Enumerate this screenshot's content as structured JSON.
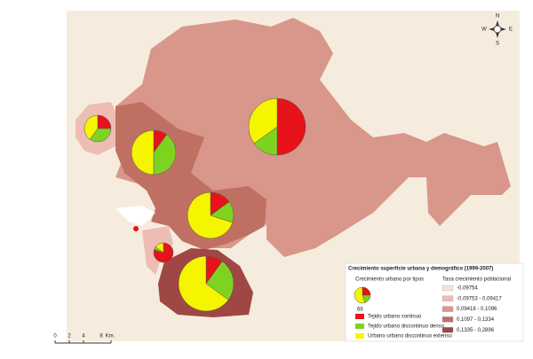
{
  "map": {
    "compass": {
      "n": "N",
      "s": "S",
      "e": "E",
      "w": "W"
    },
    "scale": {
      "ticks": [
        "0",
        "2",
        "4",
        "8"
      ],
      "unit": "Km."
    },
    "pies": [
      {
        "values": [
          25,
          35,
          40
        ]
      },
      {
        "values": [
          10,
          40,
          50
        ]
      },
      {
        "values": [
          50,
          15,
          35
        ]
      },
      {
        "values": [
          15,
          15,
          70
        ]
      },
      {
        "values": [
          80,
          5,
          15
        ]
      },
      {
        "values": [
          10,
          25,
          65
        ]
      }
    ],
    "legend": {
      "title": "Crecimiento superficie urbana y demográfico (1999-2007)",
      "pie_title": "Crecimiento urbano por tipos",
      "sample_pie": {
        "values": [
          25,
          20,
          55
        ],
        "label": "66"
      },
      "types": [
        {
          "label": "Tejido urbano continuo",
          "color": "#e8121a"
        },
        {
          "label": "Tejido urbano discontinuo denso",
          "color": "#7ed321"
        },
        {
          "label": "Urbano urbano discontinuo extenso",
          "color": "#f5f500"
        }
      ],
      "classes_title": "Tasa crecimiento poblacional",
      "classes": [
        {
          "label": "-0,09754",
          "color": "#f7e1db"
        },
        {
          "label": "-0,09753 - 0,09417",
          "color": "#edbcb2"
        },
        {
          "label": "0,09418 - 0,1096",
          "color": "#d8978a"
        },
        {
          "label": "0,1097 - 0,1334",
          "color": "#c07062"
        },
        {
          "label": "0,1335 - 0,2896",
          "color": "#9f4744"
        }
      ]
    }
  }
}
